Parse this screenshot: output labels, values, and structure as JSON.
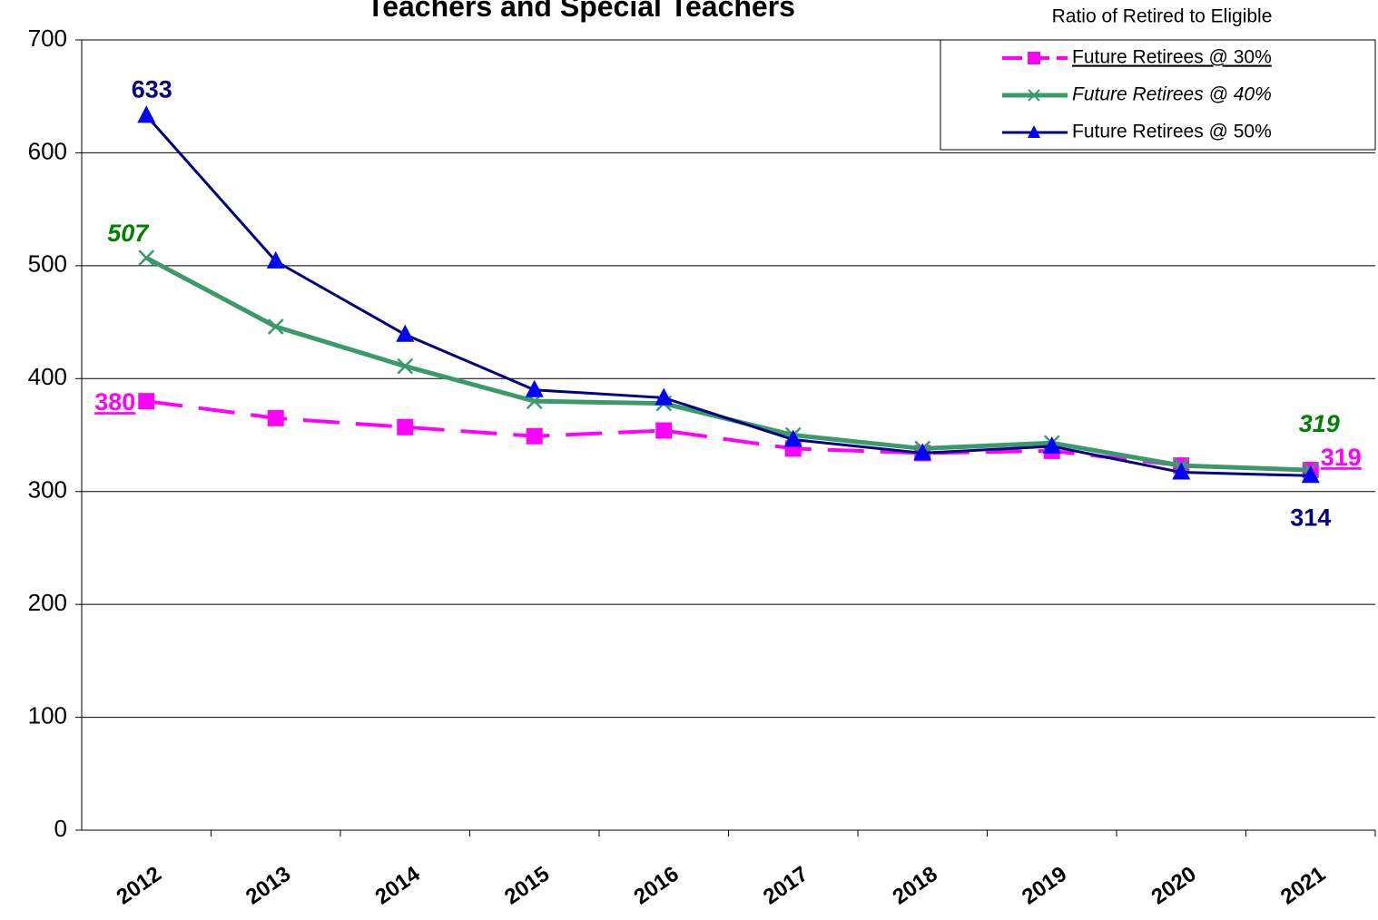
{
  "chart_data": {
    "type": "line",
    "title": "Teachers and Special Teachers",
    "legend_title": "Ratio of Retired to Eligible",
    "categories": [
      "2012",
      "2013",
      "2014",
      "2015",
      "2016",
      "2017",
      "2018",
      "2019",
      "2020",
      "2021"
    ],
    "series": [
      {
        "name": "Future Retirees @ 30%",
        "color": "#ff00ff",
        "marker": "square",
        "dashed": true,
        "values": [
          380,
          365,
          357,
          349,
          354,
          338,
          334,
          336,
          323,
          319
        ]
      },
      {
        "name": "Future Retirees @ 40%",
        "color": "#3a9a6a",
        "marker": "x",
        "dashed": false,
        "values": [
          507,
          446,
          411,
          380,
          378,
          350,
          338,
          343,
          323,
          319
        ]
      },
      {
        "name": "Future Retirees @ 50%",
        "color": "#000080",
        "marker_color": "#0000ff",
        "marker": "triangle",
        "dashed": false,
        "values": [
          633,
          504,
          439,
          390,
          383,
          346,
          334,
          340,
          317,
          314
        ]
      }
    ],
    "ylim": [
      0,
      700
    ],
    "yticks": [
      0,
      100,
      200,
      300,
      400,
      500,
      600,
      700
    ],
    "grid": true,
    "legend_position": "top-right"
  }
}
